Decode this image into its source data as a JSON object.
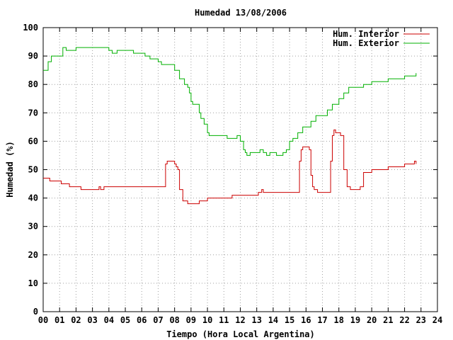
{
  "chart_data": {
    "type": "line",
    "title": "Humedad 13/08/2006",
    "xlabel": "Tiempo (Hora Local Argentina)",
    "ylabel": "Humedad (%)",
    "xlim": [
      0,
      24
    ],
    "ylim": [
      0,
      100
    ],
    "xticks": [
      "00",
      "01",
      "02",
      "03",
      "04",
      "05",
      "06",
      "07",
      "08",
      "09",
      "10",
      "11",
      "12",
      "13",
      "14",
      "15",
      "16",
      "17",
      "18",
      "19",
      "20",
      "21",
      "22",
      "23",
      "24"
    ],
    "yticks": [
      "0",
      "10",
      "20",
      "30",
      "40",
      "50",
      "60",
      "70",
      "80",
      "90",
      "100"
    ],
    "grid": true,
    "legend_position": "top-right",
    "series": [
      {
        "name": "Hum. Interior",
        "color": "#cc0000",
        "x": [
          0,
          0.3,
          0.4,
          1.0,
          1.1,
          1.5,
          1.6,
          2.2,
          2.3,
          3.2,
          3.4,
          3.5,
          3.7,
          4.0,
          5.0,
          6.0,
          7.0,
          7.35,
          7.45,
          7.55,
          7.9,
          8.0,
          8.1,
          8.2,
          8.3,
          8.5,
          8.8,
          9.0,
          9.5,
          9.9,
          10.0,
          10.8,
          11.0,
          11.5,
          12.0,
          12.5,
          13.0,
          13.1,
          13.2,
          13.3,
          13.4,
          14.0,
          15.0,
          15.5,
          15.6,
          15.7,
          15.8,
          16.0,
          16.2,
          16.3,
          16.4,
          16.5,
          16.7,
          17.0,
          17.4,
          17.5,
          17.6,
          17.7,
          17.8,
          17.9,
          18.1,
          18.2,
          18.3,
          18.5,
          18.7,
          19.0,
          19.1,
          19.3,
          19.5,
          20.0,
          20.5,
          21.0,
          21.5,
          22.0,
          22.5,
          22.6,
          22.7
        ],
        "y": [
          47,
          47,
          46,
          46,
          45,
          45,
          44,
          44,
          43,
          43,
          44,
          43,
          44,
          44,
          44,
          44,
          44,
          44,
          52,
          53,
          53,
          52,
          51,
          50,
          43,
          39,
          38,
          38,
          39,
          39,
          40,
          40,
          40,
          41,
          41,
          41,
          41,
          42,
          42,
          43,
          42,
          42,
          42,
          42,
          53,
          57,
          58,
          58,
          57,
          48,
          44,
          43,
          42,
          42,
          42,
          53,
          62,
          64,
          63,
          63,
          62,
          62,
          50,
          44,
          43,
          43,
          43,
          44,
          49,
          50,
          50,
          51,
          51,
          52,
          52,
          53,
          52
        ]
      },
      {
        "name": "Hum. Exterior",
        "color": "#00b000",
        "x": [
          0,
          0.15,
          0.3,
          0.5,
          0.7,
          1.0,
          1.2,
          1.4,
          1.5,
          1.8,
          2.0,
          2.5,
          3.0,
          3.5,
          4.0,
          4.2,
          4.5,
          5.0,
          5.5,
          6.0,
          6.2,
          6.5,
          7.0,
          7.2,
          7.5,
          7.8,
          8.0,
          8.3,
          8.6,
          8.8,
          8.9,
          9.0,
          9.1,
          9.2,
          9.5,
          9.6,
          9.8,
          10.0,
          10.1,
          10.3,
          10.5,
          11.0,
          11.2,
          11.5,
          11.8,
          12.0,
          12.2,
          12.3,
          12.4,
          12.6,
          12.8,
          13.0,
          13.2,
          13.4,
          13.6,
          13.8,
          14.0,
          14.2,
          14.4,
          14.6,
          14.8,
          15.0,
          15.2,
          15.5,
          15.8,
          16.0,
          16.3,
          16.6,
          17.0,
          17.3,
          17.6,
          18.0,
          18.3,
          18.6,
          19.0,
          19.5,
          20.0,
          20.5,
          21.0,
          21.5,
          22.0,
          22.5,
          22.7
        ],
        "y": [
          85,
          85,
          88,
          90,
          90,
          90,
          93,
          92,
          92,
          92,
          93,
          93,
          93,
          93,
          92,
          91,
          92,
          92,
          91,
          91,
          90,
          89,
          88,
          87,
          87,
          87,
          85,
          82,
          80,
          79,
          77,
          74,
          73,
          73,
          70,
          68,
          66,
          63,
          62,
          62,
          62,
          62,
          61,
          61,
          62,
          60,
          57,
          56,
          55,
          56,
          56,
          56,
          57,
          56,
          55,
          56,
          56,
          55,
          55,
          56,
          57,
          60,
          61,
          63,
          65,
          65,
          67,
          69,
          69,
          71,
          73,
          75,
          77,
          79,
          79,
          80,
          81,
          81,
          82,
          82,
          83,
          83,
          84
        ]
      }
    ]
  }
}
